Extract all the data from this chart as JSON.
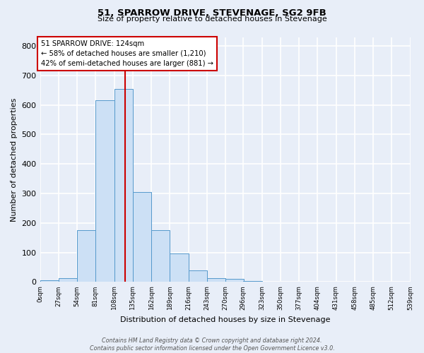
{
  "title": "51, SPARROW DRIVE, STEVENAGE, SG2 9FB",
  "subtitle": "Size of property relative to detached houses in Stevenage",
  "xlabel": "Distribution of detached houses by size in Stevenage",
  "ylabel": "Number of detached properties",
  "bin_edges": [
    0,
    27,
    54,
    81,
    108,
    135,
    162,
    189,
    216,
    243,
    270,
    296,
    323,
    350,
    377,
    404,
    431,
    458,
    485,
    512,
    539
  ],
  "bar_heights": [
    5,
    12,
    175,
    615,
    655,
    305,
    175,
    97,
    40,
    12,
    10,
    3,
    0,
    0,
    0,
    2,
    0,
    0,
    0,
    0
  ],
  "bar_color": "#cce0f5",
  "bar_edge_color": "#5599cc",
  "ref_line_x": 124,
  "ref_line_color": "#cc0000",
  "annotation_text": "51 SPARROW DRIVE: 124sqm\n← 58% of detached houses are smaller (1,210)\n42% of semi-detached houses are larger (881) →",
  "annotation_box_color": "#ffffff",
  "annotation_box_edge_color": "#cc0000",
  "ylim": [
    0,
    830
  ],
  "ytick_interval": 100,
  "bg_color": "#e8eef8",
  "grid_color": "#ffffff",
  "footer_text": "Contains HM Land Registry data © Crown copyright and database right 2024.\nContains public sector information licensed under the Open Government Licence v3.0.",
  "tick_labels": [
    "0sqm",
    "27sqm",
    "54sqm",
    "81sqm",
    "108sqm",
    "135sqm",
    "162sqm",
    "189sqm",
    "216sqm",
    "243sqm",
    "270sqm",
    "296sqm",
    "323sqm",
    "350sqm",
    "377sqm",
    "404sqm",
    "431sqm",
    "458sqm",
    "485sqm",
    "512sqm",
    "539sqm"
  ]
}
